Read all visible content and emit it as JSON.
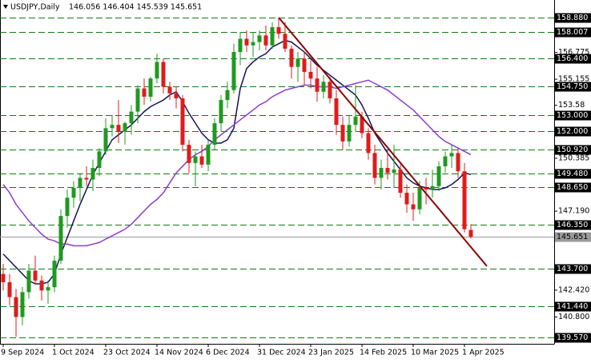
{
  "chart_data": {
    "type": "candlestick",
    "title": "USDJPY,Daily",
    "subtitle": "146.056 146.404 145.539 145.651",
    "categories": [
      "9 Sep 2024",
      null,
      null,
      null,
      null,
      null,
      null,
      null,
      "1 Oct 2024",
      null,
      null,
      null,
      null,
      null,
      null,
      null,
      "23 Oct 2024",
      null,
      null,
      null,
      null,
      null,
      null,
      null,
      "14 Nov 2024",
      null,
      null,
      null,
      null,
      null,
      null,
      null,
      "6 Dec 2024",
      null,
      null,
      null,
      null,
      null,
      null,
      null,
      "31 Dec 2024",
      null,
      null,
      null,
      null,
      null,
      null,
      null,
      "23 Jan 2025",
      null,
      null,
      null,
      null,
      null,
      null,
      null,
      "14 Feb 2025",
      null,
      null,
      null,
      null,
      null,
      null,
      null,
      "10 Mar 2025",
      null,
      null,
      null,
      null,
      null,
      null,
      null,
      "1 Apr 2025",
      null
    ],
    "open": [
      143.4,
      142.9,
      142.0,
      140.8,
      142.3,
      143.6,
      143.0,
      142.4,
      142.6,
      144.2,
      146.9,
      148.0,
      148.6,
      149.2,
      149.1,
      149.8,
      150.8,
      152.2,
      152.4,
      152.0,
      152.5,
      153.2,
      154.6,
      154.1,
      155.2,
      156.2,
      154.7,
      154.3,
      154.0,
      151.2,
      150.1,
      150.5,
      150.0,
      151.2,
      152.5,
      153.9,
      154.5,
      156.8,
      157.6,
      157.2,
      157.4,
      157.8,
      157.2,
      158.3,
      157.9,
      157.0,
      155.9,
      156.4,
      155.6,
      155.2,
      154.4,
      155.0,
      154.0,
      152.4,
      151.4,
      152.4,
      152.9,
      151.9,
      150.7,
      149.2,
      149.8,
      149.5,
      149.7,
      148.3,
      147.6,
      147.3,
      148.6,
      148.5,
      148.7,
      149.9,
      150.5,
      150.7,
      149.6,
      146.056
    ],
    "high": [
      144.0,
      143.4,
      142.5,
      142.6,
      144.0,
      144.5,
      143.3,
      143.0,
      144.5,
      147.3,
      148.5,
      149.0,
      149.5,
      149.9,
      150.3,
      151.0,
      152.8,
      153.0,
      153.9,
      152.6,
      153.6,
      154.8,
      155.2,
      155.3,
      156.7,
      156.4,
      155.0,
      154.7,
      154.2,
      151.5,
      150.8,
      151.2,
      151.5,
      152.8,
      154.2,
      155.0,
      157.3,
      158.0,
      158.1,
      158.0,
      158.1,
      158.4,
      158.6,
      158.88,
      158.6,
      157.2,
      156.8,
      156.8,
      156.3,
      155.9,
      155.4,
      155.3,
      154.5,
      152.9,
      153.0,
      154.8,
      153.2,
      152.2,
      151.2,
      150.3,
      150.9,
      151.2,
      150.0,
      148.8,
      148.3,
      149.0,
      149.2,
      149.7,
      150.2,
      150.8,
      151.2,
      151.0,
      150.1,
      146.404
    ],
    "low": [
      142.4,
      141.5,
      139.6,
      140.3,
      141.9,
      142.8,
      141.8,
      141.6,
      142.3,
      144.0,
      146.2,
      147.4,
      147.8,
      148.7,
      148.4,
      149.3,
      150.6,
      151.7,
      151.3,
      151.2,
      151.8,
      152.5,
      153.6,
      153.8,
      154.9,
      154.3,
      153.9,
      153.4,
      150.8,
      149.5,
      148.7,
      149.8,
      149.6,
      150.9,
      152.0,
      153.4,
      154.3,
      156.0,
      156.8,
      156.5,
      156.9,
      156.9,
      157.0,
      157.6,
      156.8,
      155.2,
      155.0,
      154.8,
      154.6,
      153.8,
      154.0,
      153.7,
      151.8,
      150.9,
      151.1,
      152.0,
      151.6,
      150.3,
      148.8,
      148.5,
      149.1,
      148.6,
      148.0,
      147.1,
      146.6,
      147.0,
      147.6,
      148.0,
      148.4,
      149.5,
      149.8,
      149.2,
      145.9,
      145.539
    ],
    "close": [
      142.9,
      142.0,
      140.8,
      142.3,
      143.6,
      143.0,
      142.4,
      142.6,
      144.2,
      146.9,
      148.0,
      148.6,
      149.2,
      149.1,
      149.8,
      150.8,
      152.2,
      152.4,
      152.0,
      152.5,
      153.2,
      154.6,
      154.1,
      155.2,
      156.2,
      154.7,
      154.3,
      154.0,
      151.2,
      150.1,
      150.5,
      150.0,
      151.2,
      152.5,
      153.9,
      154.5,
      156.8,
      157.6,
      157.2,
      157.4,
      157.8,
      157.2,
      158.3,
      157.9,
      157.0,
      155.9,
      156.4,
      155.6,
      155.2,
      154.4,
      155.0,
      154.0,
      152.4,
      151.4,
      152.4,
      152.9,
      151.9,
      150.7,
      149.2,
      149.8,
      149.5,
      149.7,
      148.3,
      147.6,
      147.3,
      148.6,
      148.5,
      148.7,
      149.9,
      150.5,
      150.7,
      149.6,
      146.1,
      145.651
    ],
    "up_color": "#1f9a1f",
    "down_color": "#e01b1b",
    "moving_averages": [
      {
        "color": "#14145a",
        "values": [
          144.6,
          144.2,
          143.8,
          143.4,
          143.0,
          142.8,
          142.8,
          142.9,
          143.4,
          144.6,
          145.6,
          146.6,
          147.6,
          148.5,
          149.4,
          150.1,
          150.8,
          151.5,
          151.8,
          152.1,
          152.4,
          152.8,
          153.2,
          153.5,
          153.7,
          153.9,
          154.2,
          154.4,
          153.8,
          153.1,
          152.5,
          151.9,
          151.5,
          151.3,
          151.3,
          151.5,
          152.2,
          154.6,
          155.8,
          156.2,
          156.5,
          156.7,
          157.1,
          157.3,
          157.5,
          157.4,
          157.1,
          156.8,
          156.4,
          156.0,
          155.7,
          155.4,
          155.1,
          154.8,
          154.5,
          154.2,
          153.6,
          152.8,
          151.9,
          151.3,
          150.7,
          150.2,
          149.7,
          149.2,
          148.9,
          148.7,
          148.6,
          148.5,
          148.5,
          148.6,
          148.8,
          149.1,
          149.5,
          149.4
        ]
      },
      {
        "color": "#8a3ecc",
        "values": [
          148.8,
          148.3,
          147.6,
          147.1,
          146.6,
          146.2,
          145.8,
          145.5,
          145.4,
          145.2,
          145.2,
          145.1,
          145.1,
          145.1,
          145.2,
          145.3,
          145.5,
          145.7,
          145.9,
          146.1,
          146.4,
          146.8,
          147.2,
          147.6,
          147.9,
          148.3,
          148.9,
          149.5,
          149.9,
          150.3,
          150.6,
          150.8,
          151.1,
          151.5,
          151.8,
          152.1,
          152.4,
          152.7,
          153.0,
          153.3,
          153.6,
          153.8,
          154.1,
          154.3,
          154.5,
          154.6,
          154.7,
          154.8,
          154.8,
          154.7,
          154.7,
          154.7,
          154.6,
          154.7,
          154.8,
          154.9,
          155.0,
          155.1,
          154.9,
          154.7,
          154.5,
          154.2,
          153.9,
          153.6,
          153.3,
          152.9,
          152.5,
          152.1,
          151.7,
          151.4,
          151.2,
          151.0,
          150.8,
          150.6
        ]
      }
    ],
    "trendline": {
      "color": "#8b0000",
      "x": [
        43,
        75.5
      ],
      "values": [
        158.88,
        143.87
      ]
    },
    "levels": [
      {
        "value": 158.88,
        "label": "158.880"
      },
      {
        "value": 158.007,
        "label": "158.007"
      },
      {
        "value": 156.4,
        "label": "156.400"
      },
      {
        "value": 154.75,
        "label": "154.750"
      },
      {
        "value": 153,
        "label": "153.000"
      },
      {
        "value": 152,
        "label": "152.000"
      },
      {
        "value": 150.92,
        "label": "150.920"
      },
      {
        "value": 149.48,
        "label": "149.480"
      },
      {
        "value": 148.65,
        "label": "148.650"
      },
      {
        "value": 146.35,
        "label": "146.350"
      },
      {
        "value": 143.7,
        "label": "143.700"
      },
      {
        "value": 141.44,
        "label": "141.440"
      },
      {
        "value": 139.57,
        "label": "139.570"
      }
    ],
    "level_color": "#157a15",
    "current_price": {
      "value": 145.651,
      "label": "145.651"
    },
    "ylim": [
      139.18,
      159.94
    ],
    "yticks": [
      156.775,
      155.155,
      153.58,
      150.385,
      {
        "value": 147.19,
        "label": "147.190"
      },
      {
        "value": 142.42,
        "label": "142.420"
      },
      {
        "value": 140.8,
        "label": "140.800"
      }
    ]
  }
}
